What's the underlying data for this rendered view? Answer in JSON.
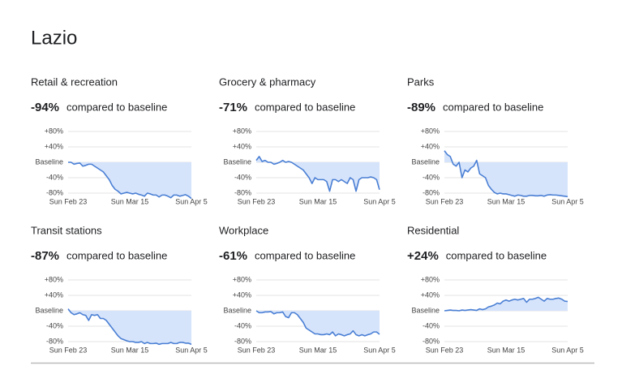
{
  "title": "Lazio",
  "chart_data": [
    {
      "type": "line",
      "title": "Retail & recreation",
      "headline": "-94%",
      "caption": "compared to baseline",
      "categories": [
        "Sun Feb 23",
        null,
        null,
        null,
        null,
        null,
        null,
        null,
        null,
        null,
        null,
        null,
        null,
        null,
        null,
        null,
        null,
        null,
        null,
        null,
        null,
        "Sun Mar 15",
        null,
        null,
        null,
        null,
        null,
        null,
        null,
        null,
        null,
        null,
        null,
        null,
        null,
        null,
        null,
        null,
        null,
        null,
        null,
        null,
        "Sun Apr 5"
      ],
      "values": [
        0,
        0,
        -5,
        -3,
        -2,
        -10,
        -8,
        -5,
        -5,
        -10,
        -15,
        -20,
        -25,
        -35,
        -45,
        -60,
        -70,
        -75,
        -82,
        -80,
        -78,
        -80,
        -82,
        -80,
        -83,
        -85,
        -88,
        -80,
        -82,
        -85,
        -85,
        -90,
        -85,
        -85,
        -88,
        -92,
        -85,
        -85,
        -88,
        -86,
        -84,
        -88,
        -94
      ],
      "ylim": [
        -80,
        80
      ],
      "yticks": [
        {
          "value": 80,
          "label": "+80%"
        },
        {
          "value": 40,
          "label": "+40%"
        },
        {
          "value": 0,
          "label": "Baseline"
        },
        {
          "value": -40,
          "label": "-40%"
        },
        {
          "value": -80,
          "label": "-80%"
        }
      ],
      "grid": true,
      "color": "#4a7fd4",
      "area_color": "#d6e4fb"
    },
    {
      "type": "line",
      "title": "Grocery & pharmacy",
      "headline": "-71%",
      "caption": "compared to baseline",
      "categories": [
        "Sun Feb 23",
        null,
        null,
        null,
        null,
        null,
        null,
        null,
        null,
        null,
        null,
        null,
        null,
        null,
        null,
        null,
        null,
        null,
        null,
        null,
        null,
        "Sun Mar 15",
        null,
        null,
        null,
        null,
        null,
        null,
        null,
        null,
        null,
        null,
        null,
        null,
        null,
        null,
        null,
        null,
        null,
        null,
        null,
        null,
        "Sun Apr 5"
      ],
      "values": [
        5,
        15,
        2,
        5,
        0,
        0,
        -5,
        -3,
        0,
        5,
        0,
        2,
        0,
        -5,
        -10,
        -15,
        -20,
        -30,
        -40,
        -55,
        -40,
        -45,
        -45,
        -45,
        -50,
        -75,
        -45,
        -45,
        -50,
        -45,
        -50,
        -55,
        -40,
        -45,
        -75,
        -45,
        -40,
        -40,
        -40,
        -38,
        -40,
        -45,
        -71
      ],
      "ylim": [
        -80,
        80
      ],
      "yticks": [
        {
          "value": 80,
          "label": "+80%"
        },
        {
          "value": 40,
          "label": "+40%"
        },
        {
          "value": 0,
          "label": "Baseline"
        },
        {
          "value": -40,
          "label": "-40%"
        },
        {
          "value": -80,
          "label": "-80%"
        }
      ],
      "grid": true,
      "color": "#4a7fd4",
      "area_color": "#d6e4fb"
    },
    {
      "type": "line",
      "title": "Parks",
      "headline": "-89%",
      "caption": "compared to baseline",
      "categories": [
        "Sun Feb 23",
        null,
        null,
        null,
        null,
        null,
        null,
        null,
        null,
        null,
        null,
        null,
        null,
        null,
        null,
        null,
        null,
        null,
        null,
        null,
        null,
        "Sun Mar 15",
        null,
        null,
        null,
        null,
        null,
        null,
        null,
        null,
        null,
        null,
        null,
        null,
        null,
        null,
        null,
        null,
        null,
        null,
        null,
        null,
        "Sun Apr 5"
      ],
      "values": [
        30,
        20,
        15,
        -5,
        -10,
        0,
        -40,
        -20,
        -25,
        -15,
        -10,
        5,
        -30,
        -35,
        -40,
        -60,
        -70,
        -78,
        -82,
        -80,
        -82,
        -82,
        -84,
        -86,
        -88,
        -85,
        -86,
        -88,
        -88,
        -86,
        -86,
        -87,
        -87,
        -86,
        -88,
        -85,
        -84,
        -85,
        -85,
        -86,
        -87,
        -88,
        -89
      ],
      "ylim": [
        -80,
        80
      ],
      "yticks": [
        {
          "value": 80,
          "label": "+80%"
        },
        {
          "value": 40,
          "label": "+40%"
        },
        {
          "value": 0,
          "label": "Baseline"
        },
        {
          "value": -40,
          "label": "-40%"
        },
        {
          "value": -80,
          "label": "-80%"
        }
      ],
      "grid": true,
      "color": "#4a7fd4",
      "area_color": "#d6e4fb"
    },
    {
      "type": "line",
      "title": "Transit stations",
      "headline": "-87%",
      "caption": "compared to baseline",
      "categories": [
        "Sun Feb 23",
        null,
        null,
        null,
        null,
        null,
        null,
        null,
        null,
        null,
        null,
        null,
        null,
        null,
        null,
        null,
        null,
        null,
        null,
        null,
        null,
        "Sun Mar 15",
        null,
        null,
        null,
        null,
        null,
        null,
        null,
        null,
        null,
        null,
        null,
        null,
        null,
        null,
        null,
        null,
        null,
        null,
        null,
        null,
        "Sun Apr 5"
      ],
      "values": [
        5,
        -5,
        -10,
        -8,
        -5,
        -10,
        -12,
        -25,
        -10,
        -12,
        -10,
        -20,
        -20,
        -25,
        -35,
        -45,
        -55,
        -65,
        -72,
        -75,
        -78,
        -80,
        -80,
        -82,
        -82,
        -80,
        -85,
        -82,
        -85,
        -85,
        -84,
        -87,
        -85,
        -85,
        -85,
        -82,
        -85,
        -85,
        -82,
        -82,
        -84,
        -84,
        -87
      ],
      "ylim": [
        -80,
        80
      ],
      "yticks": [
        {
          "value": 80,
          "label": "+80%"
        },
        {
          "value": 40,
          "label": "+40%"
        },
        {
          "value": 0,
          "label": "Baseline"
        },
        {
          "value": -40,
          "label": "-40%"
        },
        {
          "value": -80,
          "label": "-80%"
        }
      ],
      "grid": true,
      "color": "#4a7fd4",
      "area_color": "#d6e4fb"
    },
    {
      "type": "line",
      "title": "Workplace",
      "headline": "-61%",
      "caption": "compared to baseline",
      "categories": [
        "Sun Feb 23",
        null,
        null,
        null,
        null,
        null,
        null,
        null,
        null,
        null,
        null,
        null,
        null,
        null,
        null,
        null,
        null,
        null,
        null,
        null,
        null,
        "Sun Mar 15",
        null,
        null,
        null,
        null,
        null,
        null,
        null,
        null,
        null,
        null,
        null,
        null,
        null,
        null,
        null,
        null,
        null,
        null,
        null,
        null,
        "Sun Apr 5"
      ],
      "values": [
        0,
        -5,
        -5,
        -3,
        -3,
        -2,
        -8,
        -5,
        -5,
        -3,
        -15,
        -18,
        -5,
        -5,
        -10,
        -20,
        -30,
        -45,
        -50,
        -55,
        -60,
        -60,
        -62,
        -62,
        -60,
        -62,
        -55,
        -65,
        -60,
        -62,
        -65,
        -62,
        -60,
        -52,
        -62,
        -65,
        -62,
        -65,
        -62,
        -60,
        -55,
        -55,
        -61
      ],
      "ylim": [
        -80,
        80
      ],
      "yticks": [
        {
          "value": 80,
          "label": "+80%"
        },
        {
          "value": 40,
          "label": "+40%"
        },
        {
          "value": 0,
          "label": "Baseline"
        },
        {
          "value": -40,
          "label": "-40%"
        },
        {
          "value": -80,
          "label": "-80%"
        }
      ],
      "grid": true,
      "color": "#4a7fd4",
      "area_color": "#d6e4fb"
    },
    {
      "type": "line",
      "title": "Residential",
      "headline": "+24%",
      "caption": "compared to baseline",
      "categories": [
        "Sun Feb 23",
        null,
        null,
        null,
        null,
        null,
        null,
        null,
        null,
        null,
        null,
        null,
        null,
        null,
        null,
        null,
        null,
        null,
        null,
        null,
        null,
        "Sun Mar 15",
        null,
        null,
        null,
        null,
        null,
        null,
        null,
        null,
        null,
        null,
        null,
        null,
        null,
        null,
        null,
        null,
        null,
        null,
        null,
        null,
        "Sun Apr 5"
      ],
      "values": [
        0,
        1,
        2,
        1,
        1,
        0,
        2,
        1,
        2,
        3,
        2,
        1,
        5,
        3,
        5,
        10,
        12,
        15,
        20,
        18,
        25,
        28,
        25,
        28,
        30,
        28,
        30,
        32,
        22,
        30,
        30,
        32,
        35,
        30,
        25,
        32,
        30,
        30,
        32,
        33,
        30,
        25,
        24
      ],
      "ylim": [
        -80,
        80
      ],
      "yticks": [
        {
          "value": 80,
          "label": "+80%"
        },
        {
          "value": 40,
          "label": "+40%"
        },
        {
          "value": 0,
          "label": "Baseline"
        },
        {
          "value": -40,
          "label": "-40%"
        },
        {
          "value": -80,
          "label": "-80%"
        }
      ],
      "grid": true,
      "color": "#4a7fd4",
      "area_color": "#d6e4fb"
    }
  ]
}
